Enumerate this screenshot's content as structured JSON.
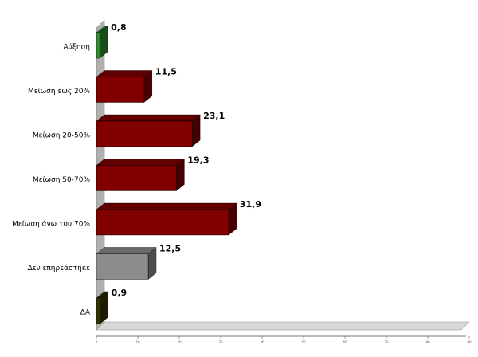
{
  "chart_data": {
    "type": "bar3d-horizontal",
    "categories": [
      "Αύξηση",
      "Μείωση έως 20%",
      "Μείωση 20-50%",
      "Μείωση 50-70%",
      "Μείωση άνω του 70%",
      "Δεν επηρεάστηκε",
      "ΔΑ"
    ],
    "values": [
      0.8,
      11.5,
      23.1,
      19.3,
      31.9,
      12.5,
      0.9
    ],
    "value_labels": [
      "0,8",
      "11,5",
      "23,1",
      "19,3",
      "31,9",
      "12,5",
      "0,9"
    ],
    "colors": [
      "#2e8b2e",
      "#800000",
      "#800000",
      "#800000",
      "#800000",
      "#8c8c8c",
      "#333300"
    ],
    "xlim": [
      0,
      90
    ],
    "xticks": [
      0,
      10,
      20,
      30,
      40,
      50,
      60,
      70,
      80,
      90
    ]
  }
}
